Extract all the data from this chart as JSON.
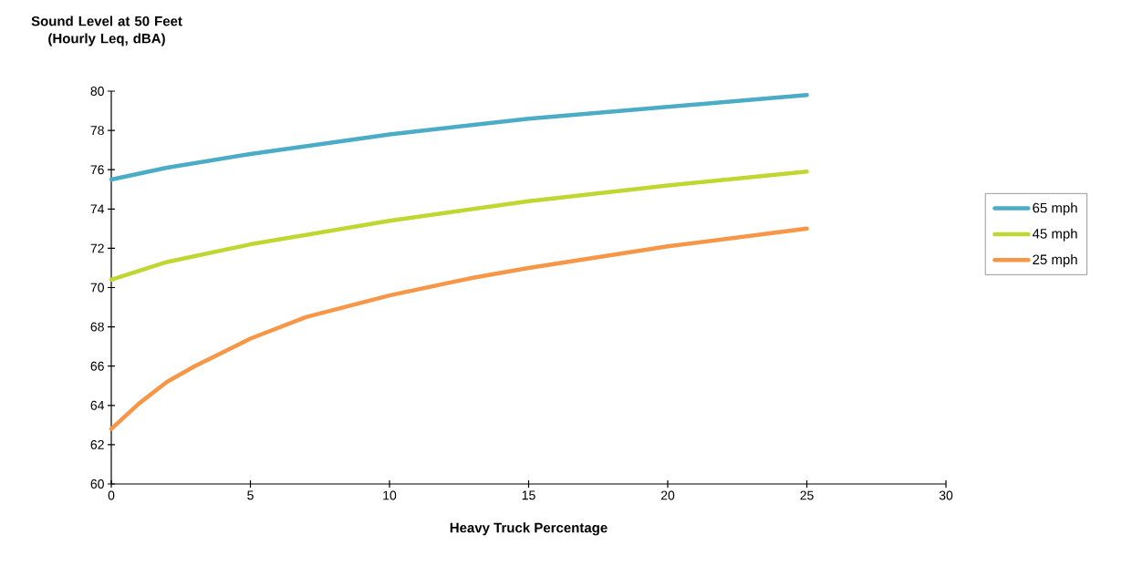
{
  "chart_data": {
    "type": "line",
    "ylabel": "Sound Level at 50 Feet (Hourly Leq, dBA)",
    "xlabel": "Heavy Truck Percentage",
    "series": [
      {
        "name": "65 mph",
        "color": "#4bacc6",
        "x": [
          0,
          2,
          5,
          10,
          15,
          20,
          25
        ],
        "values": [
          75.5,
          76.1,
          76.8,
          77.8,
          78.6,
          79.2,
          79.8
        ]
      },
      {
        "name": "45 mph",
        "color": "#bfd730",
        "x": [
          0,
          2,
          5,
          10,
          15,
          20,
          25
        ],
        "values": [
          70.4,
          71.3,
          72.2,
          73.4,
          74.4,
          75.2,
          75.9
        ]
      },
      {
        "name": "25 mph",
        "color": "#f79646",
        "x": [
          0,
          1,
          2,
          3,
          5,
          7,
          10,
          13,
          15,
          20,
          25
        ],
        "values": [
          62.8,
          64.1,
          65.2,
          66.0,
          67.4,
          68.5,
          69.6,
          70.5,
          71.0,
          72.1,
          73.0
        ]
      }
    ],
    "xlim": [
      0,
      30
    ],
    "xticks": [
      0,
      5,
      10,
      15,
      20,
      25,
      30
    ],
    "ylim": [
      60,
      80
    ],
    "yticks": [
      60,
      62,
      64,
      66,
      68,
      70,
      72,
      74,
      76,
      78,
      80
    ],
    "grid": false,
    "legend": "right",
    "marker": "none",
    "line_style": "solid"
  }
}
